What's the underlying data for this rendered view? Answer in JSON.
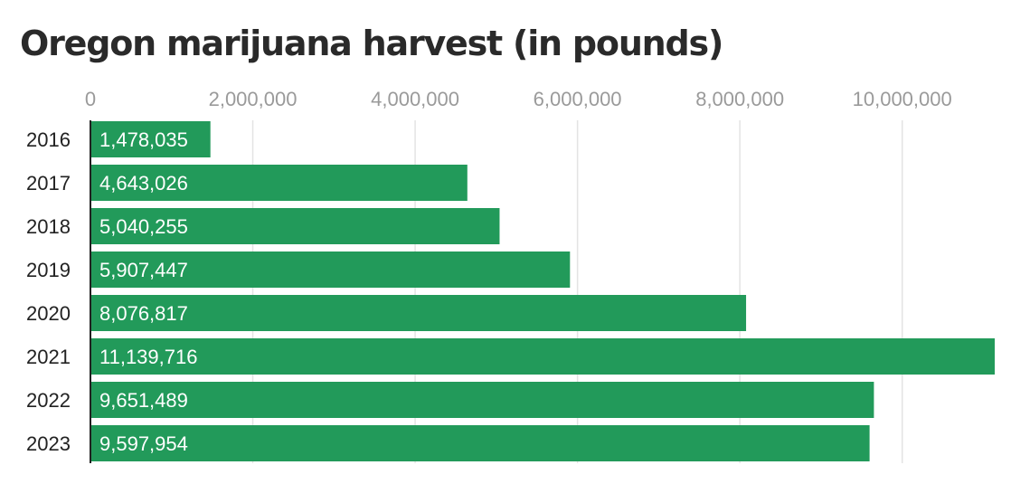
{
  "chart_data": {
    "type": "bar",
    "orientation": "horizontal",
    "title": "Oregon marijuana harvest (in pounds)",
    "categories": [
      "2016",
      "2017",
      "2018",
      "2019",
      "2020",
      "2021",
      "2022",
      "2023"
    ],
    "values": [
      1478035,
      4643026,
      5040255,
      5907447,
      8076817,
      11139716,
      9651489,
      9597954
    ],
    "data_labels": [
      "1,478,035",
      "4,643,026",
      "5,040,255",
      "5,907,447",
      "8,076,817",
      "11,139,716",
      "9,651,489",
      "9,597,954"
    ],
    "x_ticks": [
      0,
      2000000,
      4000000,
      6000000,
      8000000,
      10000000
    ],
    "x_tick_labels": [
      "0",
      "2,000,000",
      "4,000,000",
      "6,000,000",
      "8,000,000",
      "10,000,000"
    ],
    "xlim": [
      0,
      11139716
    ],
    "xlabel": "",
    "ylabel": "",
    "grid": true,
    "axis_position": "top",
    "colors": {
      "bar": "#229a5a",
      "grid": "#e3e3e3",
      "axis": "#222222"
    }
  }
}
